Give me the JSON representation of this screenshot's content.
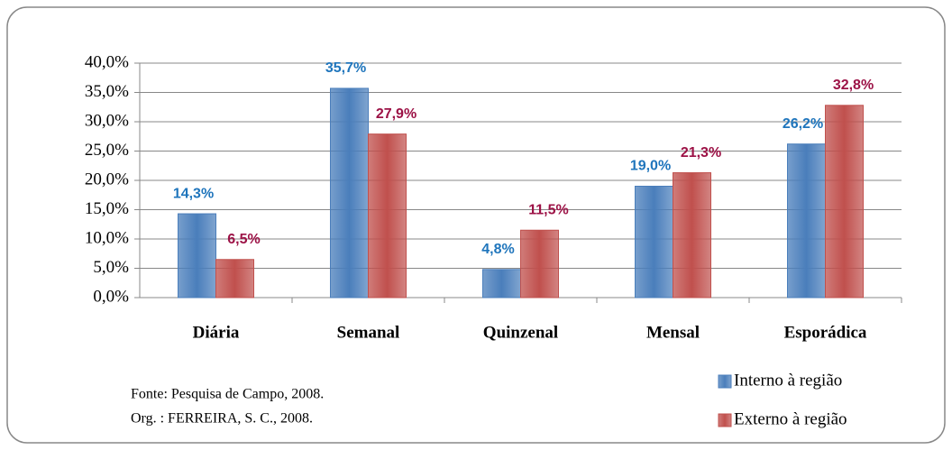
{
  "chart_data": {
    "type": "bar",
    "categories": [
      "Diária",
      "Semanal",
      "Quinzenal",
      "Mensal",
      "Esporádica"
    ],
    "series": [
      {
        "name": "Interno à região",
        "color": "#4a7ebb",
        "label_color": "#1f75bc",
        "values": [
          14.3,
          35.7,
          4.8,
          19.0,
          26.2
        ],
        "value_labels": [
          "14,3%",
          "35,7%",
          "4,8%",
          "19,0%",
          "26,2%"
        ]
      },
      {
        "name": "Externo à região",
        "color": "#c0504d",
        "label_color": "#9c1246",
        "values": [
          6.5,
          27.9,
          11.5,
          21.3,
          32.8
        ],
        "value_labels": [
          "6,5%",
          "27,9%",
          "11,5%",
          "21,3%",
          "32,8%"
        ]
      }
    ],
    "ylim": [
      0,
      40
    ],
    "yticks": [
      {
        "value": 0,
        "label": "0,0%"
      },
      {
        "value": 5,
        "label": "5,0%"
      },
      {
        "value": 10,
        "label": "10,0%"
      },
      {
        "value": 15,
        "label": "15,0%"
      },
      {
        "value": 20,
        "label": "20,0%"
      },
      {
        "value": 25,
        "label": "25,0%"
      },
      {
        "value": 30,
        "label": "30,0%"
      },
      {
        "value": 35,
        "label": "35,0%"
      },
      {
        "value": 40,
        "label": "40,0%"
      }
    ],
    "grid": true,
    "legend": "bottom-right",
    "annotations": [
      "Fonte: Pesquisa de Campo, 2008.",
      "Org. : FERREIRA, S. C., 2008."
    ]
  }
}
